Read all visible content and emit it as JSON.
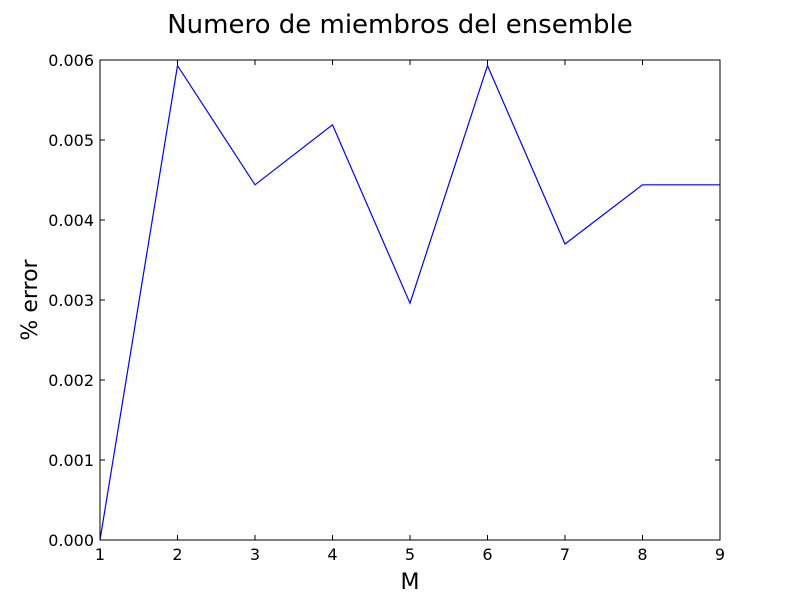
{
  "chart_data": {
    "type": "line",
    "title": "Numero de miembros del ensemble",
    "xlabel": "M",
    "ylabel": "% error",
    "x": [
      1,
      2,
      3,
      4,
      5,
      6,
      7,
      8,
      9
    ],
    "series": [
      {
        "values": [
          0.0,
          0.00593,
          0.00444,
          0.00519,
          0.00296,
          0.00593,
          0.0037,
          0.00444,
          0.00444
        ],
        "color": "#0000ff"
      }
    ],
    "xlim": [
      1,
      9
    ],
    "ylim": [
      0.0,
      0.006
    ],
    "xticks": [
      1,
      2,
      3,
      4,
      5,
      6,
      7,
      8,
      9
    ],
    "xtick_labels": [
      "1",
      "2",
      "3",
      "4",
      "5",
      "6",
      "7",
      "8",
      "9"
    ],
    "yticks": [
      0.0,
      0.001,
      0.002,
      0.003,
      0.004,
      0.005,
      0.006
    ],
    "ytick_labels": [
      "0.000",
      "0.001",
      "0.002",
      "0.003",
      "0.004",
      "0.005",
      "0.006"
    ],
    "grid": false,
    "legend": "none"
  }
}
